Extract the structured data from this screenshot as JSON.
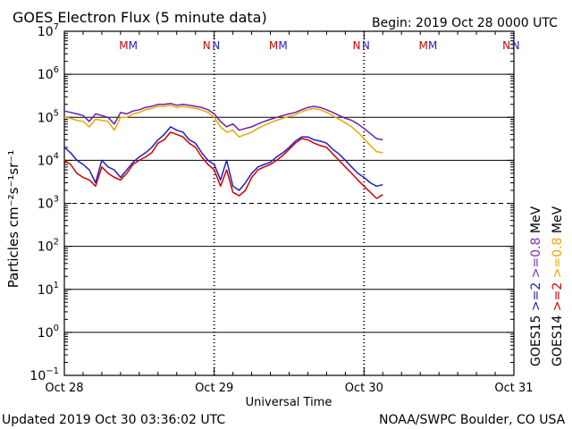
{
  "chart_data": {
    "type": "line",
    "title": "GOES Electron Flux (5 minute data)",
    "begin_label": "Begin: 2019 Oct 28 0000 UTC",
    "xlabel": "Universal Time",
    "ylabel": "Particles cm⁻²s⁻¹sr⁻¹",
    "footer_left": "Updated 2019 Oct 30 03:36:02 UTC",
    "footer_right": "NOAA/SWPC Boulder, CO USA",
    "x_unit": "hours since 2019 Oct 28 0000 UTC",
    "xlim": [
      0,
      72
    ],
    "x_ticks": [
      {
        "value": 0,
        "label": "Oct 28"
      },
      {
        "value": 24,
        "label": "Oct 29"
      },
      {
        "value": 48,
        "label": "Oct 30"
      },
      {
        "value": 72,
        "label": "Oct 31"
      }
    ],
    "y_scale": "log",
    "ylim_exponent": [
      -1,
      7
    ],
    "y_tick_exponents": [
      -1,
      0,
      1,
      2,
      3,
      4,
      5,
      6,
      7
    ],
    "threshold": {
      "value": 1000,
      "style": "dashed"
    },
    "markers": [
      {
        "x": 9.5,
        "label": "M",
        "color": "#d40000"
      },
      {
        "x": 11.0,
        "label": "M",
        "color": "#2020c0"
      },
      {
        "x": 22.8,
        "label": "N",
        "color": "#d40000"
      },
      {
        "x": 24.3,
        "label": "N",
        "color": "#2020c0"
      },
      {
        "x": 33.5,
        "label": "M",
        "color": "#d40000"
      },
      {
        "x": 35.0,
        "label": "M",
        "color": "#2020c0"
      },
      {
        "x": 46.8,
        "label": "N",
        "color": "#d40000"
      },
      {
        "x": 48.3,
        "label": "N",
        "color": "#2020c0"
      },
      {
        "x": 57.5,
        "label": "M",
        "color": "#d40000"
      },
      {
        "x": 59.0,
        "label": "M",
        "color": "#2020c0"
      },
      {
        "x": 70.8,
        "label": "N",
        "color": "#d40000"
      },
      {
        "x": 72.3,
        "label": "N",
        "color": "#2020c0"
      }
    ],
    "legend": [
      {
        "satellite": "GOES15",
        "energy": ">=2",
        "energy_unit": "MeV",
        "color_sat": "#000000",
        "color_energy": "#2020c0"
      },
      {
        "satellite": "GOES14",
        "energy": ">=2",
        "energy_unit": "MeV",
        "color_sat": "#000000",
        "color_energy": "#d40000"
      },
      {
        "satellite": "",
        "energy": ">=0.8",
        "energy_unit": "MeV",
        "color_sat": "#000000",
        "color_energy": "#7b2fb8"
      },
      {
        "satellite": "",
        "energy": ">=0.8",
        "energy_unit": "MeV",
        "color_sat": "#000000",
        "color_energy": "#e8a800"
      }
    ],
    "series": [
      {
        "name": "GOES15 >=0.8 MeV",
        "color": "#6a1fa8",
        "x": [
          0,
          1,
          2,
          3,
          4,
          5,
          6,
          7,
          8,
          9,
          10,
          11,
          12,
          13,
          14,
          15,
          16,
          17,
          18,
          19,
          20,
          21,
          22,
          23,
          24,
          25,
          26,
          27,
          28,
          29,
          30,
          31,
          32,
          33,
          34,
          35,
          36,
          37,
          38,
          39,
          40,
          41,
          42,
          43,
          44,
          45,
          46,
          47,
          48,
          49,
          50,
          51
        ],
        "y": [
          140000,
          130000,
          120000,
          110000,
          80000,
          120000,
          110000,
          100000,
          70000,
          130000,
          120000,
          140000,
          150000,
          170000,
          180000,
          200000,
          200000,
          210000,
          190000,
          200000,
          190000,
          180000,
          170000,
          150000,
          120000,
          80000,
          60000,
          70000,
          50000,
          55000,
          60000,
          70000,
          80000,
          90000,
          100000,
          110000,
          120000,
          130000,
          150000,
          170000,
          180000,
          170000,
          150000,
          130000,
          110000,
          95000,
          85000,
          70000,
          55000,
          42000,
          32000,
          30000
        ]
      },
      {
        "name": "GOES14 >=0.8 MeV",
        "color": "#e8a800",
        "x": [
          0,
          1,
          2,
          3,
          4,
          5,
          6,
          7,
          8,
          9,
          10,
          11,
          12,
          13,
          14,
          15,
          16,
          17,
          18,
          19,
          20,
          21,
          22,
          23,
          24,
          25,
          26,
          27,
          28,
          29,
          30,
          31,
          32,
          33,
          34,
          35,
          36,
          37,
          38,
          39,
          40,
          41,
          42,
          43,
          44,
          45,
          46,
          47,
          48,
          49,
          50,
          51
        ],
        "y": [
          100000,
          95000,
          85000,
          80000,
          60000,
          90000,
          85000,
          80000,
          50000,
          100000,
          100000,
          120000,
          130000,
          150000,
          160000,
          180000,
          180000,
          190000,
          170000,
          180000,
          170000,
          160000,
          150000,
          130000,
          100000,
          60000,
          45000,
          50000,
          35000,
          40000,
          45000,
          55000,
          65000,
          75000,
          85000,
          95000,
          105000,
          115000,
          135000,
          150000,
          160000,
          150000,
          130000,
          110000,
          90000,
          75000,
          60000,
          45000,
          32000,
          22000,
          16000,
          15000
        ]
      },
      {
        "name": "GOES15 >=2 MeV",
        "color": "#2020c0",
        "x": [
          0,
          1,
          2,
          3,
          4,
          5,
          6,
          7,
          8,
          9,
          10,
          11,
          12,
          13,
          14,
          15,
          16,
          17,
          18,
          19,
          20,
          21,
          22,
          23,
          24,
          25,
          26,
          27,
          28,
          29,
          30,
          31,
          32,
          33,
          34,
          35,
          36,
          37,
          38,
          39,
          40,
          41,
          42,
          43,
          44,
          45,
          46,
          47,
          48,
          49,
          50,
          51
        ],
        "y": [
          20000,
          15000,
          10000,
          8000,
          6000,
          3000,
          10000,
          7000,
          6000,
          4000,
          6000,
          9000,
          12000,
          15000,
          20000,
          30000,
          40000,
          60000,
          50000,
          45000,
          30000,
          25000,
          15000,
          10000,
          8000,
          3500,
          10000,
          2500,
          2000,
          3000,
          5000,
          7000,
          8000,
          9000,
          12000,
          15000,
          20000,
          28000,
          35000,
          35000,
          30000,
          28000,
          25000,
          18000,
          14000,
          10000,
          7000,
          5000,
          4000,
          3000,
          2500,
          2700
        ]
      },
      {
        "name": "GOES14 >=2 MeV",
        "color": "#d40000",
        "x": [
          0,
          1,
          2,
          3,
          4,
          5,
          6,
          7,
          8,
          9,
          10,
          11,
          12,
          13,
          14,
          15,
          16,
          17,
          18,
          19,
          20,
          21,
          22,
          23,
          24,
          25,
          26,
          27,
          28,
          29,
          30,
          31,
          32,
          33,
          34,
          35,
          36,
          37,
          38,
          39,
          40,
          41,
          42,
          43,
          44,
          45,
          46,
          47,
          48,
          49,
          50,
          51
        ],
        "y": [
          10000,
          8000,
          5000,
          4000,
          3500,
          2500,
          7000,
          5000,
          4000,
          3500,
          5000,
          8000,
          10000,
          12000,
          15000,
          25000,
          30000,
          45000,
          40000,
          35000,
          25000,
          20000,
          12000,
          8000,
          6000,
          2500,
          6000,
          1800,
          1500,
          2000,
          4000,
          6000,
          7000,
          8000,
          10000,
          13000,
          18000,
          25000,
          32000,
          30000,
          25000,
          22000,
          20000,
          14000,
          10000,
          7000,
          5000,
          3500,
          2500,
          1800,
          1300,
          1600
        ]
      }
    ]
  }
}
